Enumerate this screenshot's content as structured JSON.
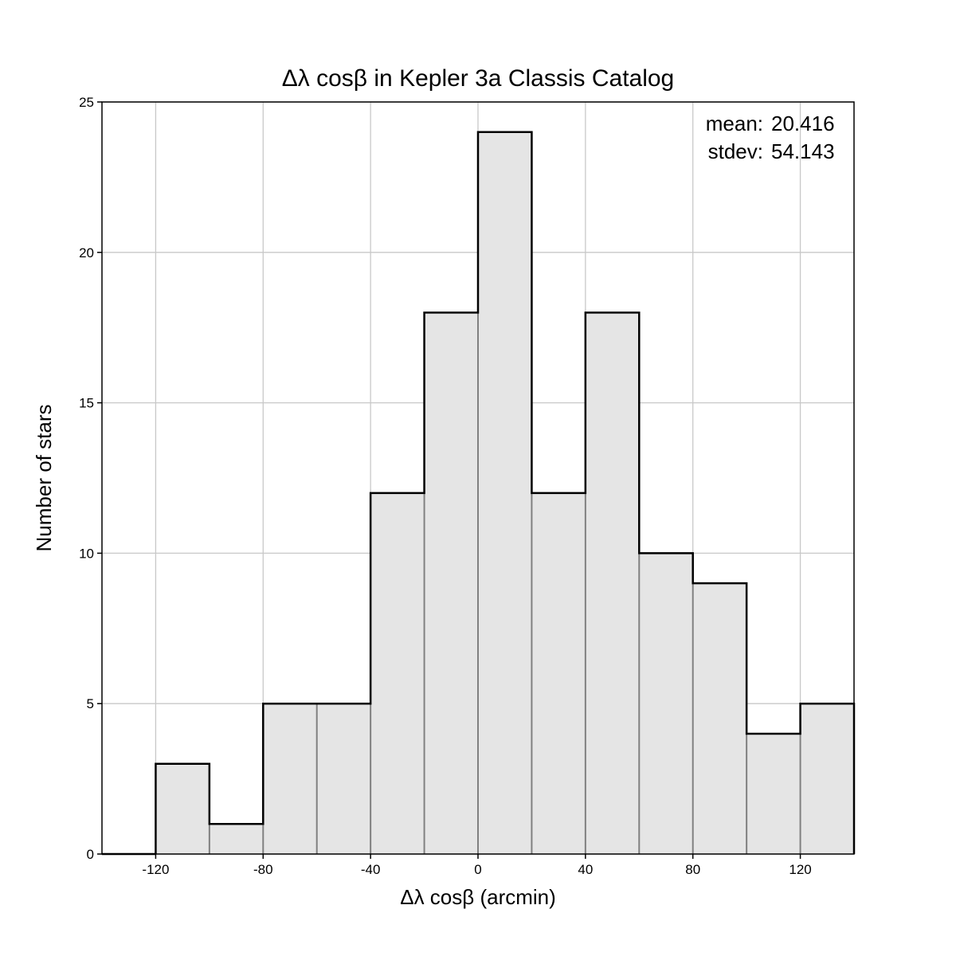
{
  "chart_data": {
    "type": "bar",
    "title": "Δλ cosβ in Kepler 3a Classis Catalog",
    "xlabel": "Δλ cosβ (arcmin)",
    "ylabel": "Number of stars",
    "xlim": [
      -140,
      140
    ],
    "ylim": [
      0,
      25
    ],
    "xticks": [
      -120,
      -80,
      -40,
      0,
      40,
      80,
      120
    ],
    "yticks": [
      0,
      5,
      10,
      15,
      20,
      25
    ],
    "grid": true,
    "bin_edges": [
      -120,
      -100,
      -80,
      -60,
      -40,
      -20,
      0,
      20,
      40,
      60,
      80,
      100,
      120,
      140
    ],
    "values": [
      3,
      1,
      5,
      5,
      12,
      18,
      24,
      12,
      18,
      10,
      9,
      4,
      5
    ],
    "colors": {
      "bar_fill": "#e5e5e5",
      "bar_edge": "#000000",
      "inner_edge": "#808080",
      "grid": "#c8c8c8"
    },
    "stats": {
      "mean_label": "mean:",
      "mean_value": "20.416",
      "stdev_label": "stdev:",
      "stdev_value": "54.143"
    }
  }
}
